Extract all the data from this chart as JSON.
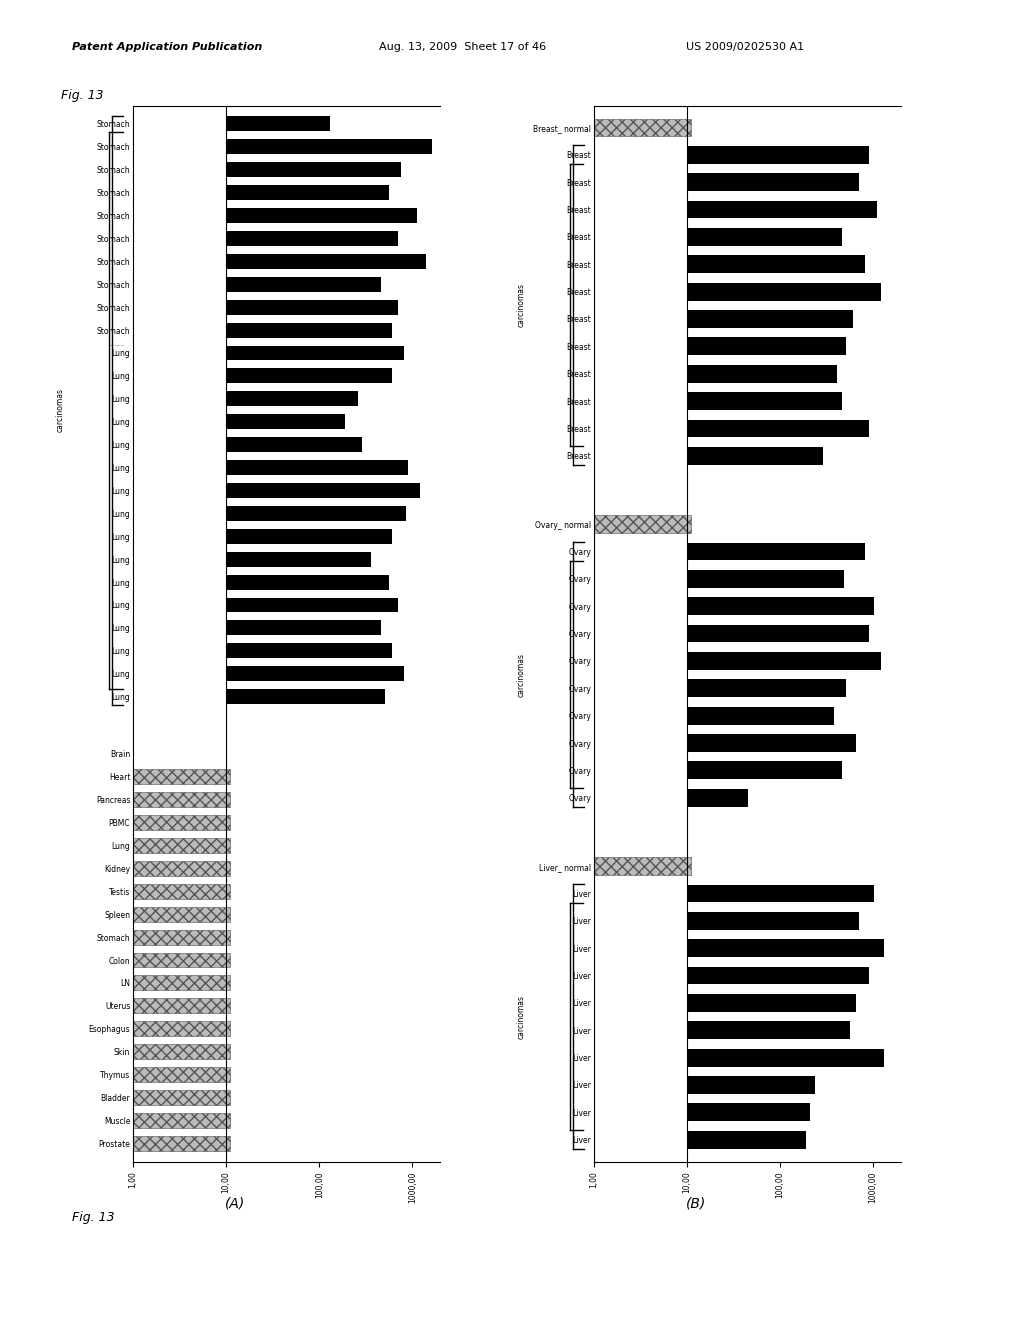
{
  "background_color": "#ffffff",
  "fig_label": "Fig. 13",
  "panel_A_label": "(A)",
  "panel_B_label": "(B)",
  "A_top_labels": [
    "Lung",
    "Lung",
    "Lung",
    "Lung",
    "Lung",
    "Lung",
    "Lung",
    "Lung",
    "Lung",
    "Lung",
    "Lung",
    "Lung",
    "Lung",
    "Lung",
    "Lung",
    "Lung",
    "Stomach",
    "Stomach",
    "Stomach",
    "Stomach",
    "Stomach",
    "Stomach",
    "Stomach",
    "Stomach",
    "Stomach",
    "Stomach"
  ],
  "A_top_vals": [
    500,
    800,
    600,
    450,
    700,
    550,
    350,
    600,
    850,
    1200,
    900,
    280,
    180,
    250,
    600,
    800,
    600,
    700,
    450,
    1400,
    700,
    1100,
    550,
    750,
    1600,
    120
  ],
  "A_bot_labels": [
    "Prostate",
    "Muscle",
    "Bladder",
    "Thymus",
    "Skin",
    "Esophagus",
    "Uterus",
    "LN",
    "Colon",
    "Stomach",
    "Spleen",
    "Testis",
    "Kidney",
    "Lung",
    "PBMC",
    "Pancreas",
    "Heart",
    "Brain"
  ],
  "A_bot_vals": [
    1.2,
    14,
    12,
    13,
    9,
    17,
    6,
    22,
    18,
    15,
    25,
    2,
    19,
    20,
    28,
    17,
    7,
    1.1
  ],
  "B_breast_labels": [
    "Breast",
    "Breast",
    "Breast",
    "Breast",
    "Breast",
    "Breast",
    "Breast",
    "Breast",
    "Breast",
    "Breast",
    "Breast",
    "Breast",
    "Breast_ normal"
  ],
  "B_breast_vals": [
    280,
    900,
    450,
    400,
    500,
    600,
    1200,
    800,
    450,
    1100,
    700,
    900,
    22
  ],
  "B_breast_is_normal": [
    false,
    false,
    false,
    false,
    false,
    false,
    false,
    false,
    false,
    false,
    false,
    false,
    true
  ],
  "B_ovary_labels": [
    "Ovary",
    "Ovary",
    "Ovary",
    "Ovary",
    "Ovary",
    "Ovary",
    "Ovary",
    "Ovary",
    "Ovary",
    "Ovary",
    "Ovary_ normal"
  ],
  "B_ovary_vals": [
    35,
    450,
    650,
    370,
    500,
    1200,
    900,
    1000,
    480,
    800,
    18
  ],
  "B_ovary_is_normal": [
    false,
    false,
    false,
    false,
    false,
    false,
    false,
    false,
    false,
    false,
    true
  ],
  "B_liver_labels": [
    "Liver",
    "Liver",
    "Liver",
    "Liver",
    "Liver",
    "Liver",
    "Liver",
    "Liver",
    "Liver",
    "Liver",
    "Liver_ normal"
  ],
  "B_liver_vals": [
    180,
    200,
    230,
    1300,
    550,
    650,
    900,
    1300,
    700,
    1000,
    15
  ],
  "B_liver_is_normal": [
    false,
    false,
    false,
    false,
    false,
    false,
    false,
    false,
    false,
    false,
    true
  ],
  "x_ticks": [
    1000.0,
    100.0,
    10.0,
    1.0
  ],
  "x_tick_labels": [
    "1000,00",
    "100,00",
    "10,00",
    "1,00"
  ],
  "ref_val": 10.0,
  "x_min": 1.0,
  "x_max": 2000.0
}
